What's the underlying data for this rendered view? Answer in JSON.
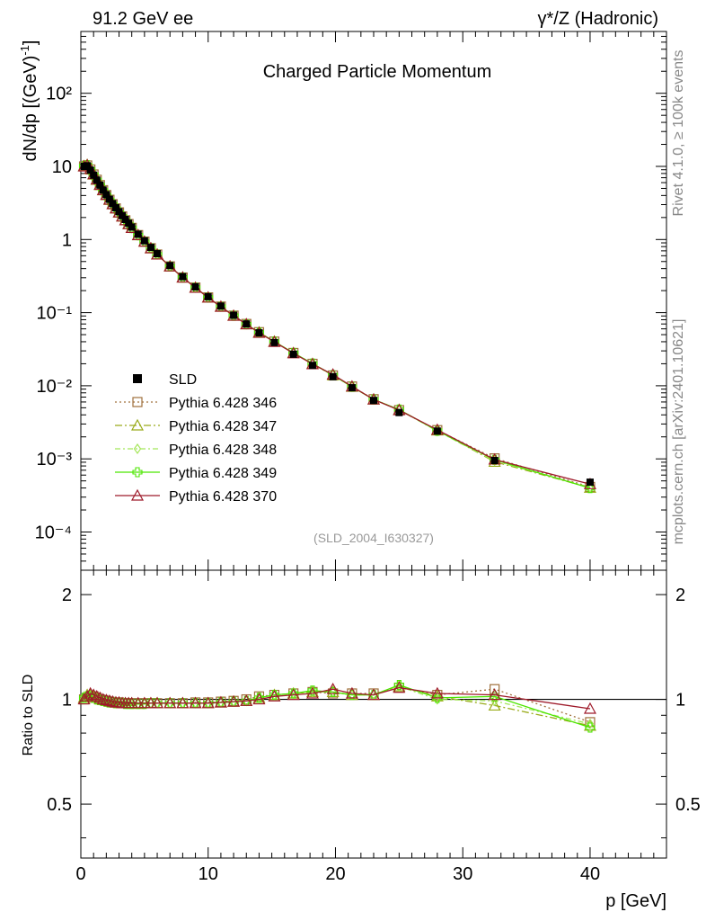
{
  "header": {
    "left": "91.2 GeV ee",
    "right": "γ*/Z (Hadronic)"
  },
  "side_labels": {
    "rivet": "Rivet 4.1.0, ≥ 100k events",
    "mcplots": "mcplots.cern.ch [arXiv:2401.10621]"
  },
  "chart_data": {
    "type": "line",
    "title": "Charged Particle Momentum",
    "analysis_id": "(SLD_2004_I630327)",
    "xlabel": "p [GeV]",
    "ylabel": "dN/dp [(GeV)⁻¹]",
    "ratio_ylabel": "Ratio to SLD",
    "xlim": [
      0,
      46
    ],
    "ylim": [
      3e-05,
      700
    ],
    "yscale": "log",
    "ratio_ylim": [
      0.35,
      2.35
    ],
    "x_ticks": [
      "0",
      "10",
      "20",
      "30",
      "40"
    ],
    "y_ticks": [
      "10⁻⁴",
      "10⁻³",
      "10⁻²",
      "10⁻¹",
      "1",
      "10",
      "10²"
    ],
    "ratio_ticks": [
      "0.5",
      "1",
      "2"
    ],
    "x": [
      0.25,
      0.5,
      0.75,
      1.0,
      1.25,
      1.5,
      1.75,
      2.0,
      2.25,
      2.5,
      2.75,
      3.0,
      3.25,
      3.5,
      3.75,
      4.0,
      4.5,
      5.0,
      5.5,
      6.0,
      7.0,
      8.0,
      9.0,
      10.0,
      11.0,
      12.0,
      13.0,
      14.0,
      15.2,
      16.7,
      18.2,
      19.8,
      21.3,
      23.0,
      25.0,
      28.0,
      32.5,
      40.0
    ],
    "legend": [
      "SLD",
      "Pythia 6.428 346",
      "Pythia 6.428 347",
      "Pythia 6.428 348",
      "Pythia 6.428 349",
      "Pythia 6.428 370"
    ],
    "series": [
      {
        "name": "SLD",
        "color": "#000000",
        "values": [
          10.0,
          10.2,
          8.9,
          7.6,
          6.5,
          5.55,
          4.75,
          4.1,
          3.55,
          3.1,
          2.72,
          2.4,
          2.12,
          1.88,
          1.67,
          1.48,
          1.18,
          0.96,
          0.78,
          0.64,
          0.44,
          0.31,
          0.225,
          0.165,
          0.123,
          0.092,
          0.07,
          0.053,
          0.039,
          0.027,
          0.019,
          0.0133,
          0.0094,
          0.0063,
          0.0043,
          0.0024,
          0.00095,
          0.00048
        ]
      },
      {
        "name": "Pythia 6.428 346",
        "color": "#a0703c",
        "ratio": [
          1.0,
          1.01,
          1.02,
          1.02,
          1.01,
          1.0,
          0.995,
          0.99,
          0.985,
          0.98,
          0.98,
          0.98,
          0.975,
          0.975,
          0.975,
          0.975,
          0.975,
          0.975,
          0.975,
          0.975,
          0.975,
          0.975,
          0.98,
          0.98,
          0.985,
          0.99,
          1.0,
          1.02,
          1.03,
          1.04,
          1.05,
          1.04,
          1.04,
          1.04,
          1.08,
          1.03,
          1.07,
          0.86
        ]
      },
      {
        "name": "Pythia 6.428 347",
        "color": "#9aab1a",
        "ratio": [
          1.01,
          1.03,
          1.03,
          1.02,
          1.01,
          1.0,
          0.995,
          0.99,
          0.985,
          0.98,
          0.98,
          0.975,
          0.975,
          0.975,
          0.975,
          0.975,
          0.97,
          0.975,
          0.975,
          0.975,
          0.975,
          0.975,
          0.975,
          0.975,
          0.98,
          0.985,
          0.99,
          1.01,
          1.03,
          1.04,
          1.05,
          1.05,
          1.03,
          1.03,
          1.09,
          1.02,
          0.96,
          0.84
        ]
      },
      {
        "name": "Pythia 6.428 348",
        "color": "#a5e65a",
        "ratio": [
          1.02,
          1.03,
          1.02,
          1.01,
          1.0,
          0.995,
          0.99,
          0.985,
          0.98,
          0.98,
          0.975,
          0.975,
          0.975,
          0.975,
          0.97,
          0.97,
          0.97,
          0.97,
          0.975,
          0.975,
          0.975,
          0.975,
          0.975,
          0.975,
          0.98,
          0.985,
          0.99,
          1.01,
          1.03,
          1.04,
          1.05,
          1.05,
          1.03,
          1.03,
          1.09,
          1.0,
          0.99,
          0.85
        ]
      },
      {
        "name": "Pythia 6.428 349",
        "color": "#4ce600",
        "ratio": [
          1.01,
          1.02,
          1.02,
          1.01,
          1.0,
          0.995,
          0.99,
          0.985,
          0.98,
          0.98,
          0.975,
          0.975,
          0.975,
          0.97,
          0.97,
          0.97,
          0.97,
          0.97,
          0.975,
          0.975,
          0.975,
          0.975,
          0.975,
          0.975,
          0.98,
          0.985,
          0.99,
          1.01,
          1.03,
          1.04,
          1.06,
          1.05,
          1.03,
          1.03,
          1.1,
          1.01,
          1.02,
          0.83
        ]
      },
      {
        "name": "Pythia 6.428 370",
        "color": "#9e1a2a",
        "ratio": [
          1.0,
          1.02,
          1.04,
          1.03,
          1.02,
          1.01,
          1.0,
          0.995,
          0.99,
          0.985,
          0.98,
          0.98,
          0.975,
          0.975,
          0.975,
          0.975,
          0.975,
          0.975,
          0.975,
          0.975,
          0.975,
          0.975,
          0.975,
          0.975,
          0.98,
          0.985,
          0.99,
          1.0,
          1.02,
          1.03,
          1.04,
          1.07,
          1.04,
          1.03,
          1.08,
          1.04,
          1.03,
          0.94
        ]
      }
    ]
  }
}
